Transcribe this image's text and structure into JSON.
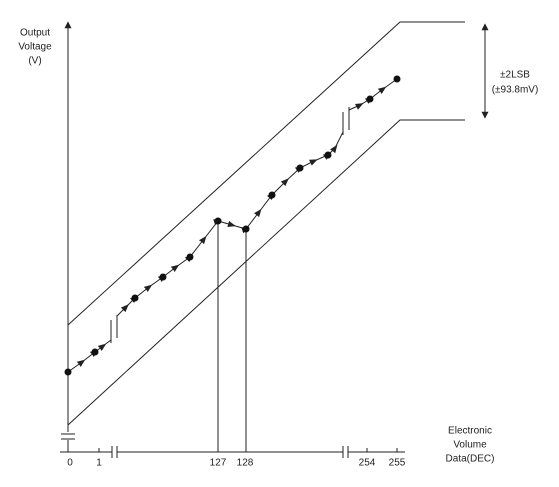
{
  "y_axis": {
    "label_lines": [
      "Output",
      "Voltage",
      "(V)"
    ]
  },
  "x_axis": {
    "label_lines": [
      "Electronic",
      "Volume",
      "Data(DEC)"
    ],
    "tick_labels": [
      "0",
      "1",
      "127",
      "128",
      "254",
      "255"
    ]
  },
  "tolerance": {
    "label_lines": [
      "±2LSB",
      "(±93.8mV)"
    ]
  }
}
